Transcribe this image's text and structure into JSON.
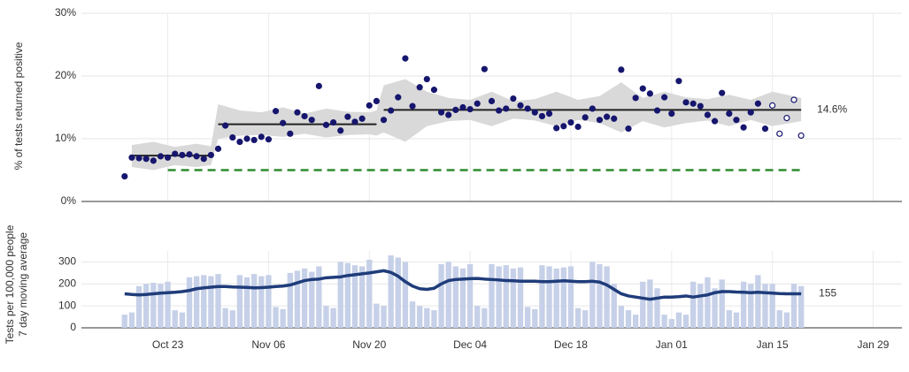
{
  "chart_data": [
    {
      "type": "scatter",
      "y_label": "% of tests returned positive",
      "xlim": [
        -12,
        102
      ],
      "ylim": [
        0,
        30
      ],
      "yticks": [
        {
          "value": 0,
          "label": "0%"
        },
        {
          "value": 10,
          "label": "10%"
        },
        {
          "value": 20,
          "label": "20%"
        },
        {
          "value": 30,
          "label": "30%"
        }
      ],
      "grid": true,
      "x": [
        -6,
        -5,
        -4,
        -3,
        -2,
        -1,
        0,
        1,
        2,
        3,
        4,
        5,
        6,
        7,
        8,
        9,
        10,
        11,
        12,
        13,
        14,
        15,
        16,
        17,
        18,
        19,
        20,
        21,
        22,
        23,
        24,
        25,
        26,
        27,
        28,
        29,
        30,
        31,
        32,
        33,
        34,
        35,
        36,
        37,
        38,
        39,
        40,
        41,
        42,
        43,
        44,
        45,
        46,
        47,
        48,
        49,
        50,
        51,
        52,
        53,
        54,
        55,
        56,
        57,
        58,
        59,
        60,
        61,
        62,
        63,
        64,
        65,
        66,
        67,
        68,
        69,
        70,
        71,
        72,
        73,
        74,
        75,
        76,
        77,
        78,
        79,
        80,
        81,
        82,
        83,
        84,
        85,
        86,
        87,
        88
      ],
      "series": [
        {
          "color": "#16166e",
          "marker": "filled",
          "values": [
            4.0,
            7.0,
            6.9,
            6.8,
            6.5,
            7.2,
            7.0,
            7.6,
            7.4,
            7.5,
            7.2,
            6.8,
            7.4,
            8.4,
            12.1,
            10.2,
            9.5,
            10.0,
            9.8,
            10.3,
            9.9,
            14.4,
            12.5,
            10.8,
            14.2,
            13.6,
            13.0,
            18.4,
            12.2,
            12.6,
            11.3,
            13.5,
            12.7,
            13.2,
            15.3,
            16.0,
            13.0,
            14.5,
            16.6,
            22.8,
            15.2,
            18.2,
            19.5,
            17.8,
            14.2,
            13.8,
            14.6,
            15.0,
            14.7,
            15.6,
            21.1,
            16.0,
            14.5,
            14.8,
            16.4,
            15.3,
            14.8,
            14.2,
            13.6,
            14.0,
            11.7,
            12.0,
            12.6,
            11.9,
            13.4,
            14.8,
            13.0,
            13.5,
            13.2,
            21.0,
            11.6,
            16.5,
            18.0,
            17.2,
            14.5,
            16.6,
            14.0,
            19.2,
            15.8,
            15.6,
            15.2,
            13.8,
            12.8,
            17.3,
            14.0,
            13.0,
            11.8,
            14.2,
            15.6,
            11.6,
            null,
            null,
            null,
            null,
            null
          ]
        },
        {
          "color": "#16166e",
          "marker": "open",
          "values": [
            null,
            null,
            null,
            null,
            null,
            null,
            null,
            null,
            null,
            null,
            null,
            null,
            null,
            null,
            null,
            null,
            null,
            null,
            null,
            null,
            null,
            null,
            null,
            null,
            null,
            null,
            null,
            null,
            null,
            null,
            null,
            null,
            null,
            null,
            null,
            null,
            null,
            null,
            null,
            null,
            null,
            null,
            null,
            null,
            null,
            null,
            null,
            null,
            null,
            null,
            null,
            null,
            null,
            null,
            null,
            null,
            null,
            null,
            null,
            null,
            null,
            null,
            null,
            null,
            null,
            null,
            null,
            null,
            null,
            null,
            null,
            null,
            null,
            null,
            null,
            null,
            null,
            null,
            null,
            null,
            null,
            null,
            null,
            null,
            null,
            null,
            null,
            null,
            null,
            null,
            15.3,
            10.8,
            13.3,
            16.2,
            10.5
          ]
        }
      ],
      "band": {
        "color": "#d9d9d9",
        "x": [
          -5,
          -2,
          1,
          4,
          6,
          7,
          10,
          13,
          16,
          19,
          22,
          25,
          28,
          29,
          30,
          33,
          36,
          39,
          42,
          45,
          48,
          51,
          54,
          57,
          60,
          63,
          66,
          69,
          72,
          75,
          78,
          81,
          84,
          88
        ],
        "lower": [
          5.5,
          5.0,
          5.8,
          5.5,
          5.8,
          10.0,
          10.5,
          10.6,
          10.3,
          10.8,
          10.2,
          10.6,
          10.7,
          10.5,
          11.0,
          9.5,
          12.0,
          12.8,
          13.0,
          12.0,
          13.2,
          12.9,
          12.0,
          13.0,
          12.5,
          11.0,
          12.8,
          11.8,
          12.5,
          12.9,
          12.0,
          13.0,
          12.0,
          12.8
        ],
        "upper": [
          9.0,
          9.5,
          8.7,
          9.2,
          8.8,
          15.5,
          14.5,
          14.2,
          15.0,
          14.0,
          14.8,
          14.3,
          14.2,
          14.5,
          18.5,
          19.5,
          17.5,
          16.5,
          16.2,
          17.5,
          16.0,
          16.3,
          17.5,
          16.2,
          16.8,
          19.0,
          16.5,
          17.5,
          16.6,
          16.3,
          17.0,
          16.2,
          17.5,
          16.5
        ]
      },
      "lines": [
        {
          "x": [
            -5,
            6
          ],
          "y": 7.3,
          "color": "#222222"
        },
        {
          "x": [
            7,
            29
          ],
          "y": 12.3,
          "color": "#222222"
        },
        {
          "x": [
            30,
            88
          ],
          "y": 14.6,
          "color": "#222222",
          "label": "14.6%"
        },
        {
          "x": [
            0,
            88
          ],
          "y": 5,
          "color": "#2e8b2e",
          "dashed": true
        }
      ]
    },
    {
      "type": "bar",
      "y_label": [
        "Tests per 100,000 people",
        "7 day moving average"
      ],
      "xlim": [
        -12,
        102
      ],
      "ylim": [
        0,
        350
      ],
      "yticks": [
        0,
        100,
        200,
        300
      ],
      "xticks": [
        {
          "value": 0,
          "label": "Oct 23"
        },
        {
          "value": 14,
          "label": "Nov 06"
        },
        {
          "value": 28,
          "label": "Nov 20"
        },
        {
          "value": 42,
          "label": "Dec 04"
        },
        {
          "value": 56,
          "label": "Dec 18"
        },
        {
          "value": 70,
          "label": "Jan 01"
        },
        {
          "value": 84,
          "label": "Jan 15"
        },
        {
          "value": 98,
          "label": "Jan 29"
        }
      ],
      "grid": true,
      "x": [
        -6,
        -5,
        -4,
        -3,
        -2,
        -1,
        0,
        1,
        2,
        3,
        4,
        5,
        6,
        7,
        8,
        9,
        10,
        11,
        12,
        13,
        14,
        15,
        16,
        17,
        18,
        19,
        20,
        21,
        22,
        23,
        24,
        25,
        26,
        27,
        28,
        29,
        30,
        31,
        32,
        33,
        34,
        35,
        36,
        37,
        38,
        39,
        40,
        41,
        42,
        43,
        44,
        45,
        46,
        47,
        48,
        49,
        50,
        51,
        52,
        53,
        54,
        55,
        56,
        57,
        58,
        59,
        60,
        61,
        62,
        63,
        64,
        65,
        66,
        67,
        68,
        69,
        70,
        71,
        72,
        73,
        74,
        75,
        76,
        77,
        78,
        79,
        80,
        81,
        82,
        83,
        84,
        85,
        86,
        87,
        88
      ],
      "series": [
        {
          "type": "bar",
          "color": "#c6d0e8",
          "values": [
            60,
            70,
            190,
            200,
            205,
            200,
            210,
            80,
            70,
            230,
            235,
            240,
            235,
            245,
            90,
            80,
            240,
            230,
            245,
            235,
            240,
            95,
            85,
            250,
            260,
            270,
            255,
            280,
            100,
            90,
            300,
            295,
            285,
            280,
            310,
            110,
            100,
            330,
            320,
            300,
            120,
            100,
            90,
            80,
            290,
            300,
            280,
            270,
            290,
            100,
            90,
            290,
            280,
            285,
            270,
            275,
            95,
            85,
            285,
            280,
            270,
            275,
            280,
            90,
            80,
            300,
            290,
            280,
            200,
            100,
            80,
            60,
            210,
            220,
            180,
            60,
            40,
            70,
            60,
            210,
            200,
            230,
            180,
            220,
            80,
            70,
            210,
            200,
            240,
            200,
            200,
            80,
            70,
            200,
            190
          ]
        },
        {
          "type": "line",
          "color": "#1f3c7a",
          "end_label": "155",
          "values": [
            155,
            152,
            150,
            152,
            155,
            158,
            160,
            162,
            165,
            170,
            178,
            182,
            185,
            188,
            188,
            186,
            185,
            184,
            182,
            183,
            185,
            188,
            190,
            195,
            205,
            215,
            220,
            222,
            228,
            230,
            232,
            238,
            242,
            246,
            250,
            255,
            260,
            252,
            235,
            210,
            190,
            178,
            175,
            180,
            200,
            215,
            220,
            222,
            224,
            225,
            222,
            220,
            218,
            215,
            214,
            212,
            212,
            212,
            210,
            210,
            212,
            214,
            212,
            210,
            210,
            212,
            208,
            195,
            175,
            155,
            145,
            140,
            135,
            130,
            135,
            140,
            140,
            142,
            145,
            140,
            145,
            150,
            160,
            165,
            165,
            163,
            162,
            160,
            162,
            160,
            158,
            156,
            155,
            155,
            155
          ]
        }
      ]
    }
  ]
}
